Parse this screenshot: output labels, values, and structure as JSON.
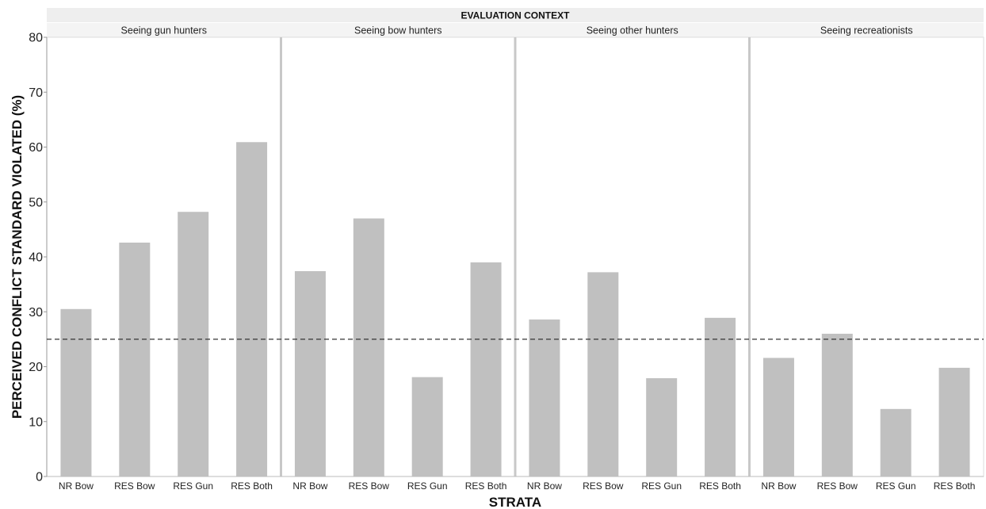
{
  "chart_data": {
    "type": "bar",
    "header": "EVALUATION CONTEXT",
    "xlabel": "STRATA",
    "ylabel": "PERCEIVED CONFLICT STANDARD VIOLATED (%)",
    "ylim": [
      0,
      80
    ],
    "yticks": [
      "0",
      "10",
      "20",
      "30",
      "40",
      "50",
      "60",
      "70",
      "80"
    ],
    "reference_line": 25,
    "colors": {
      "bar": "#c0c0c0",
      "header_bg": "#eeeeee",
      "panel_title_bg": "#f4f4f4",
      "divider": "#c8c8c8",
      "reference": "#333333"
    },
    "panels": [
      {
        "title": "Seeing gun hunters",
        "categories": [
          "NR Bow",
          "RES Bow",
          "RES Gun",
          "RES Both"
        ],
        "values": [
          30.5,
          42.6,
          48.2,
          60.9
        ]
      },
      {
        "title": "Seeing bow hunters",
        "categories": [
          "NR Bow",
          "RES Bow",
          "RES Gun",
          "RES Both"
        ],
        "values": [
          37.4,
          47.0,
          18.1,
          39.0
        ]
      },
      {
        "title": "Seeing other hunters",
        "categories": [
          "NR Bow",
          "RES Bow",
          "RES Gun",
          "RES Both"
        ],
        "values": [
          28.6,
          37.2,
          17.9,
          28.9
        ]
      },
      {
        "title": "Seeing recreationists",
        "categories": [
          "NR Bow",
          "RES Bow",
          "RES Gun",
          "RES Both"
        ],
        "values": [
          21.6,
          26.0,
          12.3,
          19.8
        ]
      }
    ]
  }
}
